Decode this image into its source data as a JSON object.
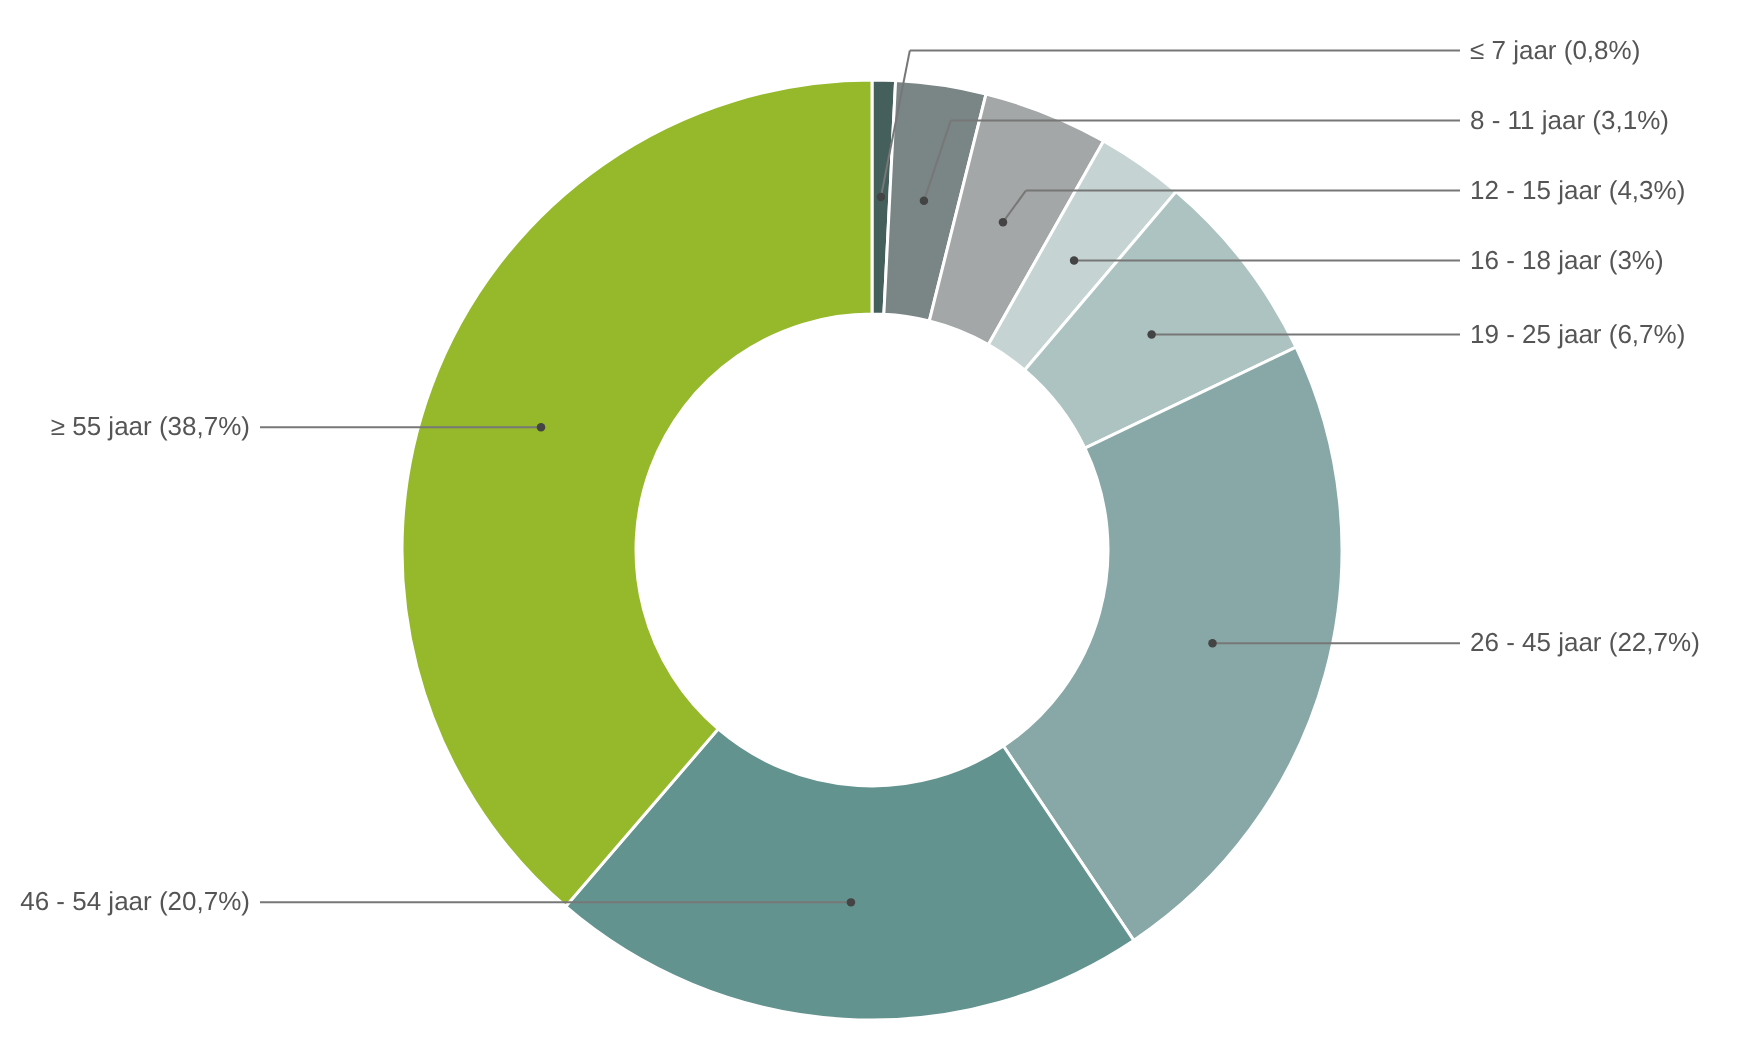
{
  "chart_data": {
    "type": "donut",
    "categories": [
      "≤ 7 jaar",
      "8 - 11 jaar",
      "12 - 15 jaar",
      "16 - 18 jaar",
      "19 - 25 jaar",
      "26 - 45 jaar",
      "46 - 54 jaar",
      "≥ 55 jaar"
    ],
    "values": [
      0.8,
      3.1,
      4.3,
      3,
      6.7,
      22.7,
      20.7,
      38.7
    ],
    "value_labels": [
      "(0,8%)",
      "(3,1%)",
      "(4,3%)",
      "(3%)",
      "(6,7%)",
      "(22,7%)",
      "(20,7%)",
      "(38,7%)"
    ],
    "colors": [
      "#45605c",
      "#7a8585",
      "#a3a7a7",
      "#c5d3d3",
      "#adc3c1",
      "#87a8a6",
      "#63938f",
      "#95b92b"
    ]
  }
}
